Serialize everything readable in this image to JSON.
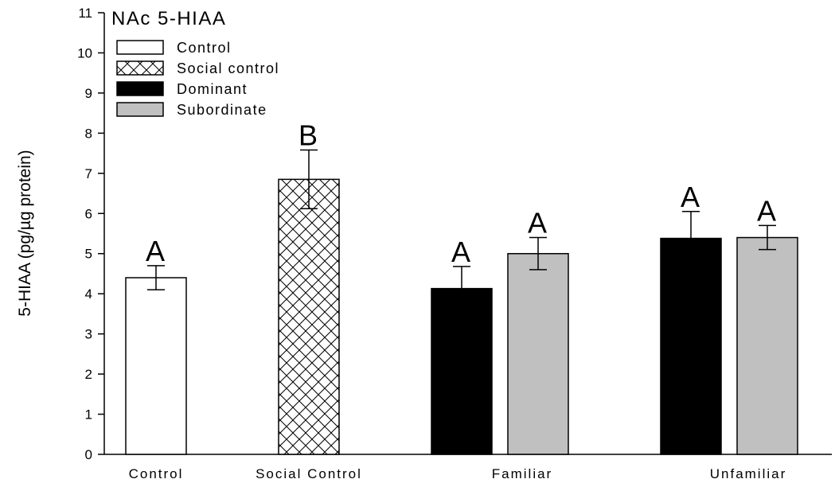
{
  "chart_data": {
    "type": "bar",
    "title": "NAc 5-HIAA",
    "ylabel": "5-HIAA (pg/µg protein)",
    "xlabel": "",
    "ylim": [
      0,
      11
    ],
    "yticks": [
      0,
      1,
      2,
      3,
      4,
      5,
      6,
      7,
      8,
      9,
      10,
      11
    ],
    "grid": false,
    "legend_position": "top-left",
    "categories": [
      "Control",
      "Social Control",
      "Familiar",
      "Unfamiliar"
    ],
    "legend": [
      {
        "name": "Control",
        "fill": "#ffffff",
        "pattern": "none"
      },
      {
        "name": "Social control",
        "fill": "#ffffff",
        "pattern": "crosshatch"
      },
      {
        "name": "Dominant",
        "fill": "#000000",
        "pattern": "none"
      },
      {
        "name": "Subordinate",
        "fill": "#c0c0c0",
        "pattern": "none"
      }
    ],
    "bars": [
      {
        "category": "Control",
        "group": "Control",
        "value": 4.4,
        "error": 0.3,
        "label": "A"
      },
      {
        "category": "Social Control",
        "group": "Social control",
        "value": 6.85,
        "error": 0.73,
        "label": "B"
      },
      {
        "category": "Familiar",
        "group": "Dominant",
        "value": 4.13,
        "error": 0.55,
        "label": "A"
      },
      {
        "category": "Familiar",
        "group": "Subordinate",
        "value": 5.0,
        "error": 0.4,
        "label": "A"
      },
      {
        "category": "Unfamiliar",
        "group": "Dominant",
        "value": 5.38,
        "error": 0.67,
        "label": "A"
      },
      {
        "category": "Unfamiliar",
        "group": "Subordinate",
        "value": 5.4,
        "error": 0.3,
        "label": "A"
      }
    ]
  }
}
